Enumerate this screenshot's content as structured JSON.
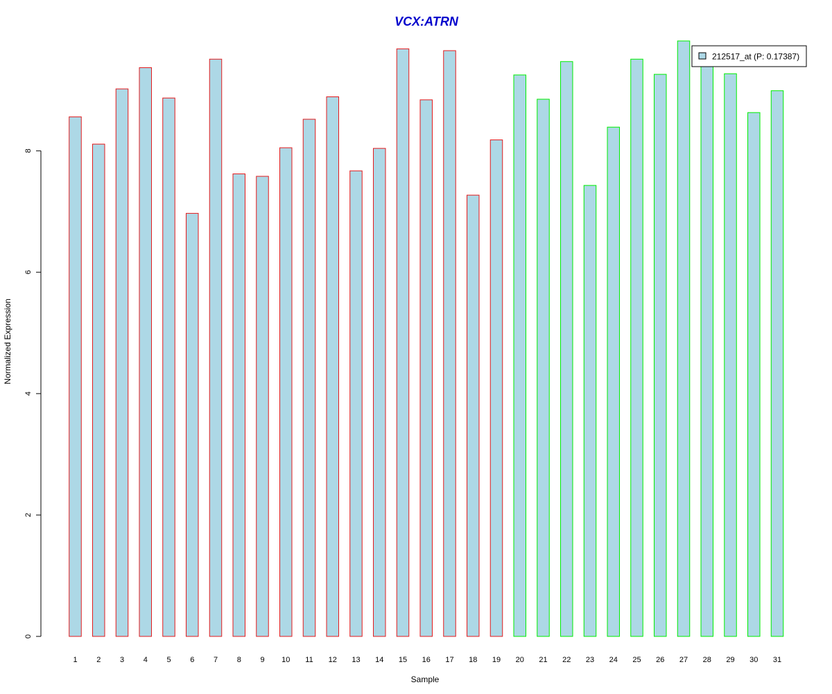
{
  "chart_data": {
    "type": "bar",
    "title": "VCX:ATRN",
    "xlabel": "Sample",
    "ylabel": "Normalized Expression",
    "categories": [
      "1",
      "2",
      "3",
      "4",
      "5",
      "6",
      "7",
      "8",
      "9",
      "10",
      "11",
      "12",
      "13",
      "14",
      "15",
      "16",
      "17",
      "18",
      "19",
      "20",
      "21",
      "22",
      "23",
      "24",
      "25",
      "26",
      "27",
      "28",
      "29",
      "30",
      "31"
    ],
    "series": [
      {
        "name": "212517_at (P: 0.17387)",
        "values": [
          8.56,
          8.11,
          9.02,
          9.37,
          8.87,
          6.97,
          9.51,
          7.62,
          7.58,
          8.05,
          8.52,
          8.89,
          7.67,
          8.04,
          9.68,
          8.84,
          9.65,
          7.27,
          8.18,
          9.25,
          8.85,
          9.47,
          7.43,
          8.39,
          9.51,
          9.26,
          9.81,
          9.42,
          9.27,
          8.63,
          8.99
        ]
      }
    ],
    "group_border_colors": [
      "#e41a1c",
      "#e41a1c",
      "#e41a1c",
      "#e41a1c",
      "#e41a1c",
      "#e41a1c",
      "#e41a1c",
      "#e41a1c",
      "#e41a1c",
      "#e41a1c",
      "#e41a1c",
      "#e41a1c",
      "#e41a1c",
      "#e41a1c",
      "#e41a1c",
      "#e41a1c",
      "#e41a1c",
      "#e41a1c",
      "#e41a1c",
      "#00ee00",
      "#00ee00",
      "#00ee00",
      "#00ee00",
      "#00ee00",
      "#00ee00",
      "#00ee00",
      "#00ee00",
      "#00ee00",
      "#00ee00",
      "#00ee00",
      "#00ee00"
    ],
    "bar_fill": "#add8e6",
    "title_color": "#0000cc",
    "yticks": [
      0,
      2,
      4,
      6,
      8
    ],
    "ylim": [
      0,
      9.81
    ],
    "grid": false,
    "legend_position": "top-right"
  }
}
